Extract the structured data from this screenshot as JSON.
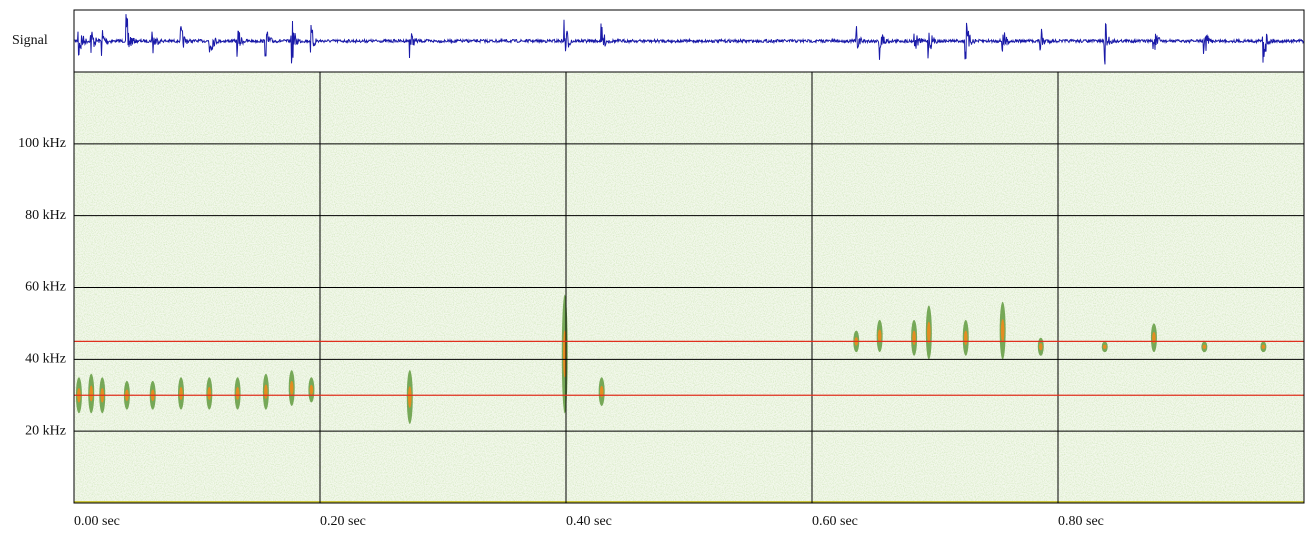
{
  "chart_data": {
    "type": "spectrogram",
    "signal_label": "Signal",
    "xlim": [
      0,
      1.0
    ],
    "xticks": [
      {
        "value": 0,
        "label": "0.00 sec"
      },
      {
        "value": 0.2,
        "label": "0.20 sec"
      },
      {
        "value": 0.4,
        "label": "0.40 sec"
      },
      {
        "value": 0.6,
        "label": "0.60 sec"
      },
      {
        "value": 0.8,
        "label": "0.80 sec"
      }
    ],
    "ylim": [
      0,
      120
    ],
    "yticks": [
      {
        "value": 20,
        "label": "20 kHz"
      },
      {
        "value": 40,
        "label": "40 kHz"
      },
      {
        "value": 60,
        "label": "60 kHz"
      },
      {
        "value": 80,
        "label": "80 kHz"
      },
      {
        "value": 100,
        "label": "100 kHz"
      }
    ],
    "grid": true,
    "reference_lines": [
      {
        "value": 45,
        "color": "#e0301e"
      },
      {
        "value": 30,
        "color": "#e0301e"
      }
    ],
    "signal_color": "#1a1aa8",
    "call_color": "#4f8f2a",
    "calls": [
      {
        "time": 0.004,
        "freq": [
          25,
          35
        ]
      },
      {
        "time": 0.014,
        "freq": [
          25,
          36
        ]
      },
      {
        "time": 0.023,
        "freq": [
          25,
          35
        ]
      },
      {
        "time": 0.043,
        "freq": [
          26,
          34
        ]
      },
      {
        "time": 0.064,
        "freq": [
          26,
          34
        ]
      },
      {
        "time": 0.087,
        "freq": [
          26,
          35
        ]
      },
      {
        "time": 0.11,
        "freq": [
          26,
          35
        ]
      },
      {
        "time": 0.133,
        "freq": [
          26,
          35
        ]
      },
      {
        "time": 0.156,
        "freq": [
          26,
          36
        ]
      },
      {
        "time": 0.177,
        "freq": [
          27,
          37
        ]
      },
      {
        "time": 0.193,
        "freq": [
          28,
          35
        ]
      },
      {
        "time": 0.273,
        "freq": [
          22,
          37
        ]
      },
      {
        "time": 0.399,
        "freq": [
          25,
          58
        ]
      },
      {
        "time": 0.429,
        "freq": [
          27,
          35
        ]
      },
      {
        "time": 0.636,
        "freq": [
          42,
          48
        ]
      },
      {
        "time": 0.655,
        "freq": [
          42,
          51
        ]
      },
      {
        "time": 0.683,
        "freq": [
          41,
          51
        ]
      },
      {
        "time": 0.695,
        "freq": [
          40,
          55
        ]
      },
      {
        "time": 0.725,
        "freq": [
          41,
          51
        ]
      },
      {
        "time": 0.755,
        "freq": [
          40,
          56
        ]
      },
      {
        "time": 0.786,
        "freq": [
          41,
          46
        ]
      },
      {
        "time": 0.838,
        "freq": [
          42,
          45
        ]
      },
      {
        "time": 0.878,
        "freq": [
          42,
          50
        ]
      },
      {
        "time": 0.919,
        "freq": [
          42,
          45
        ]
      },
      {
        "time": 0.967,
        "freq": [
          42,
          45
        ]
      }
    ]
  }
}
